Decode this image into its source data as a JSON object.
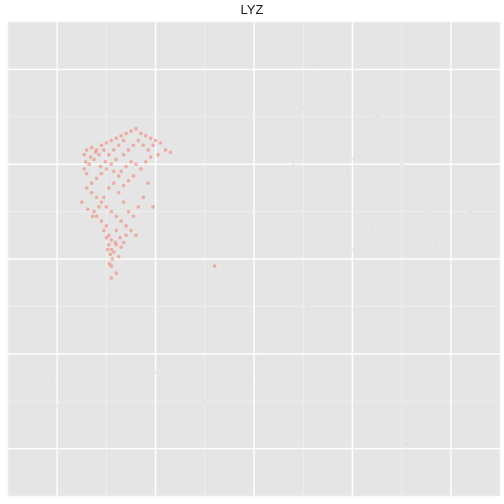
{
  "chart_data": {
    "type": "scatter",
    "title": "LYZ",
    "xlabel": "",
    "ylabel": "",
    "xlim": [
      0,
      10
    ],
    "ylim": [
      0,
      10
    ],
    "grid": true,
    "legend": "none",
    "colors": {
      "panel": "#e5e5e5",
      "grid_major": "#ffffff",
      "grid_minor": "#f2f2f2",
      "high": "#f08070",
      "low": "#d9d9d9"
    },
    "series": [
      {
        "values": "high",
        "points": [
          [
            1.55,
            7.2
          ],
          [
            1.6,
            7.3
          ],
          [
            1.7,
            7.35
          ],
          [
            1.8,
            7.3
          ],
          [
            1.9,
            7.4
          ],
          [
            2.0,
            7.45
          ],
          [
            2.1,
            7.5
          ],
          [
            2.2,
            7.55
          ],
          [
            2.3,
            7.6
          ],
          [
            2.4,
            7.65
          ],
          [
            2.5,
            7.7
          ],
          [
            2.6,
            7.75
          ],
          [
            2.7,
            7.65
          ],
          [
            2.8,
            7.6
          ],
          [
            2.9,
            7.55
          ],
          [
            3.0,
            7.5
          ],
          [
            3.1,
            7.45
          ],
          [
            2.55,
            7.4
          ],
          [
            2.45,
            7.3
          ],
          [
            2.35,
            7.2
          ],
          [
            2.2,
            7.1
          ],
          [
            2.1,
            7.0
          ],
          [
            2.0,
            6.9
          ],
          [
            1.9,
            6.8
          ],
          [
            1.8,
            6.7
          ],
          [
            1.7,
            6.6
          ],
          [
            1.6,
            6.8
          ],
          [
            1.55,
            6.9
          ],
          [
            1.65,
            7.0
          ],
          [
            1.75,
            7.1
          ],
          [
            1.85,
            7.2
          ],
          [
            1.95,
            7.3
          ],
          [
            2.05,
            7.2
          ],
          [
            2.15,
            7.3
          ],
          [
            2.25,
            7.4
          ],
          [
            2.35,
            7.5
          ],
          [
            2.65,
            7.5
          ],
          [
            2.75,
            7.4
          ],
          [
            2.85,
            7.3
          ],
          [
            2.95,
            7.4
          ],
          [
            1.6,
            6.5
          ],
          [
            1.7,
            6.4
          ],
          [
            1.8,
            6.3
          ],
          [
            1.9,
            6.2
          ],
          [
            2.0,
            6.1
          ],
          [
            2.1,
            6.0
          ],
          [
            2.2,
            5.9
          ],
          [
            2.3,
            5.8
          ],
          [
            2.4,
            5.7
          ],
          [
            2.5,
            5.6
          ],
          [
            2.6,
            5.5
          ],
          [
            2.4,
            5.5
          ],
          [
            2.2,
            5.6
          ],
          [
            2.0,
            5.7
          ],
          [
            1.9,
            5.8
          ],
          [
            1.8,
            5.9
          ],
          [
            1.75,
            6.0
          ],
          [
            1.85,
            6.1
          ],
          [
            1.95,
            6.3
          ],
          [
            2.05,
            6.5
          ],
          [
            2.15,
            6.6
          ],
          [
            2.25,
            6.4
          ],
          [
            2.35,
            6.2
          ],
          [
            2.45,
            6.0
          ],
          [
            2.55,
            5.9
          ],
          [
            2.65,
            6.1
          ],
          [
            2.75,
            6.3
          ],
          [
            2.85,
            6.6
          ],
          [
            2.05,
            5.5
          ],
          [
            2.1,
            5.4
          ],
          [
            2.05,
            5.3
          ],
          [
            2.1,
            5.2
          ],
          [
            2.08,
            5.1
          ],
          [
            2.12,
            5.0
          ],
          [
            2.06,
            4.9
          ],
          [
            2.1,
            4.85
          ],
          [
            2.15,
            5.15
          ],
          [
            2.2,
            5.3
          ],
          [
            2.0,
            5.45
          ],
          [
            1.95,
            5.6
          ],
          [
            2.25,
            5.05
          ],
          [
            2.3,
            5.25
          ],
          [
            2.18,
            5.35
          ],
          [
            2.02,
            5.2
          ],
          [
            2.28,
            5.45
          ],
          [
            2.35,
            5.35
          ],
          [
            1.5,
            6.2
          ],
          [
            1.62,
            6.05
          ],
          [
            1.72,
            5.9
          ],
          [
            2.95,
            6.1
          ],
          [
            2.7,
            6.9
          ],
          [
            2.6,
            7.0
          ],
          [
            2.5,
            7.05
          ],
          [
            2.4,
            6.95
          ],
          [
            2.3,
            6.85
          ],
          [
            2.55,
            6.75
          ],
          [
            2.45,
            6.65
          ],
          [
            2.35,
            6.55
          ],
          [
            2.25,
            6.75
          ],
          [
            2.15,
            6.85
          ],
          [
            1.58,
            7.05
          ],
          [
            1.68,
            7.15
          ],
          [
            1.78,
            7.25
          ],
          [
            1.88,
            6.95
          ],
          [
            1.98,
            7.05
          ],
          [
            3.2,
            7.3
          ],
          [
            3.3,
            7.25
          ],
          [
            3.05,
            7.2
          ],
          [
            2.9,
            7.15
          ],
          [
            2.8,
            7.05
          ],
          [
            4.2,
            4.85
          ],
          [
            2.2,
            4.7
          ],
          [
            2.1,
            4.6
          ]
        ]
      },
      {
        "values": "low",
        "points": [
          [
            6.5,
            9.3
          ],
          [
            6.3,
            9.1
          ],
          [
            6.2,
            8.8
          ],
          [
            6.4,
            8.6
          ],
          [
            6.6,
            8.4
          ],
          [
            6.3,
            7.9
          ],
          [
            6.1,
            7.6
          ],
          [
            6.5,
            7.4
          ],
          [
            7.2,
            8.3
          ],
          [
            7.5,
            8.0
          ],
          [
            7.8,
            7.6
          ],
          [
            8.1,
            7.3
          ],
          [
            7.3,
            6.6
          ],
          [
            7.6,
            6.3
          ],
          [
            7.9,
            6.1
          ],
          [
            8.2,
            6.4
          ],
          [
            8.5,
            6.0
          ],
          [
            8.9,
            6.2
          ],
          [
            9.1,
            5.8
          ],
          [
            9.3,
            5.5
          ],
          [
            8.7,
            5.3
          ],
          [
            9.0,
            4.9
          ],
          [
            8.3,
            4.8
          ],
          [
            7.7,
            5.1
          ],
          [
            7.4,
            5.6
          ],
          [
            6.9,
            6.8
          ],
          [
            7.0,
            7.1
          ],
          [
            8.0,
            7.0
          ],
          [
            8.6,
            6.7
          ],
          [
            9.4,
            6.0
          ],
          [
            5.1,
            2.9
          ],
          [
            4.9,
            2.5
          ],
          [
            5.3,
            2.7
          ],
          [
            4.6,
            2.3
          ],
          [
            5.7,
            2.8
          ],
          [
            7.1,
            2.9
          ],
          [
            7.5,
            2.4
          ],
          [
            7.8,
            2.2
          ],
          [
            8.0,
            1.9
          ],
          [
            8.2,
            1.6
          ],
          [
            7.9,
            1.4
          ],
          [
            7.6,
            1.2
          ],
          [
            7.3,
            1.6
          ],
          [
            8.4,
            1.3
          ],
          [
            8.1,
            1.1
          ],
          [
            0.8,
            2.1
          ],
          [
            1.0,
            1.9
          ],
          [
            1.2,
            2.3
          ],
          [
            0.9,
            2.5
          ],
          [
            1.3,
            2.0
          ],
          [
            1.1,
            2.2
          ],
          [
            3.2,
            2.4
          ],
          [
            3.0,
            2.6
          ],
          [
            2.6,
            3.2
          ],
          [
            2.9,
            2.8
          ],
          [
            3.6,
            2.1
          ],
          [
            4.0,
            2.0
          ],
          [
            6.1,
            4.0
          ],
          [
            6.7,
            3.4
          ],
          [
            7.2,
            3.8
          ],
          [
            5.5,
            3.2
          ],
          [
            8.8,
            4.3
          ],
          [
            9.2,
            4.7
          ],
          [
            2.1,
            4.3
          ],
          [
            2.15,
            4.4
          ],
          [
            2.05,
            4.2
          ],
          [
            6.0,
            8.2
          ],
          [
            6.9,
            8.9
          ],
          [
            5.8,
            7.0
          ],
          [
            7.0,
            5.2
          ]
        ]
      }
    ]
  }
}
